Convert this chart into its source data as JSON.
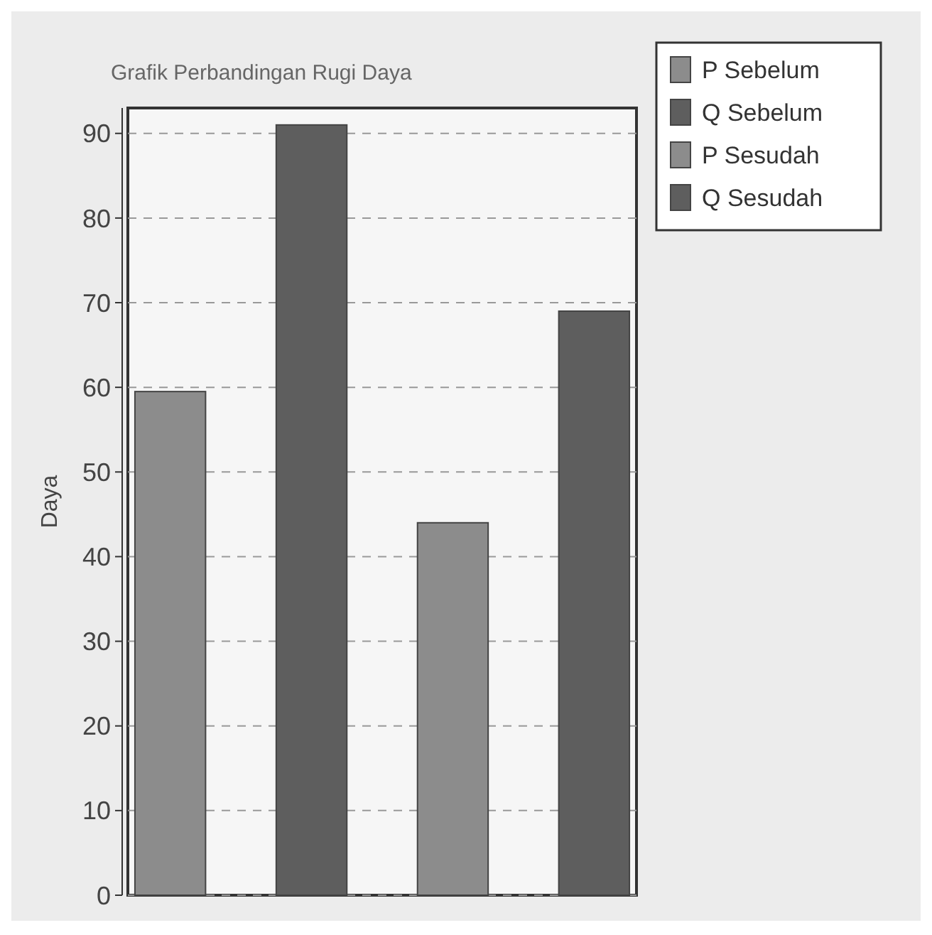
{
  "chart_data": {
    "type": "bar",
    "title": "Grafik Perbandingan Rugi Daya",
    "ylabel": "Daya",
    "categories": [
      null
    ],
    "series": [
      {
        "name": "P Sebelum",
        "color": "#8c8c8c",
        "values": [
          59.5
        ]
      },
      {
        "name": "Q Sebelum",
        "color": "#5e5e5e",
        "values": [
          91
        ]
      },
      {
        "name": "P Sesudah",
        "color": "#8c8c8c",
        "values": [
          44
        ]
      },
      {
        "name": "Q Sesudah",
        "color": "#5e5e5e",
        "values": [
          69
        ]
      }
    ],
    "ylim": [
      0,
      93
    ],
    "yticks": [
      0,
      10,
      20,
      30,
      40,
      50,
      60,
      70,
      80,
      90
    ],
    "grid": "y",
    "legend": "top right"
  }
}
